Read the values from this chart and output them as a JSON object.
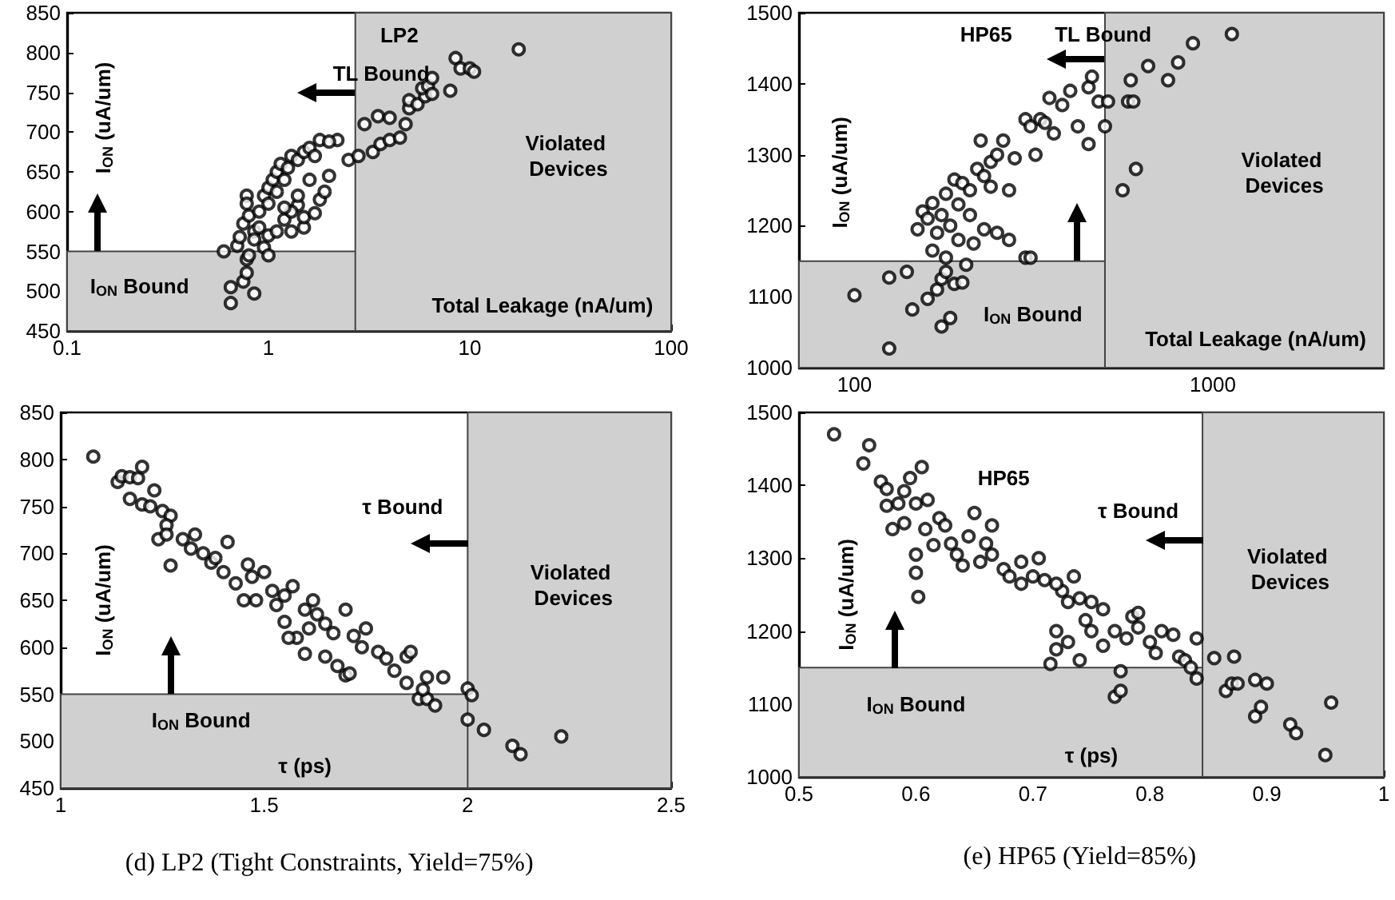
{
  "chart_data": [
    {
      "type": "scatter",
      "title": "LP2",
      "xlabel": "Total Leakage (nA/um)",
      "ylabel": "I$_{ON}$ (uA/um)",
      "log": "x",
      "xlim": [
        0.1,
        100
      ],
      "xticks": [
        0.1,
        1,
        10,
        100
      ],
      "ylim": [
        450,
        850
      ],
      "yticks": [
        450,
        500,
        550,
        600,
        650,
        700,
        750,
        800,
        850
      ],
      "grid": false,
      "marker": "circle",
      "bands": [
        {
          "axis": "y",
          "from": 450,
          "to": 550,
          "color": "#d0d0d0"
        },
        {
          "axis": "x",
          "from": 2.7,
          "to": 100,
          "color": "#d0d0d0"
        }
      ],
      "annotations": [
        "TL Bound",
        "Violated Devices",
        "I$_{ON}$ Bound"
      ],
      "series": [
        {
          "color": "#000000",
          "x": [
            0.6,
            0.65,
            0.65,
            0.75,
            0.78,
            0.78,
            0.8,
            0.85,
            0.7,
            0.72,
            0.75,
            0.78,
            0.78,
            0.8,
            0.85,
            0.85,
            0.9,
            0.9,
            0.95,
            1.0,
            0.95,
            1.0,
            1.0,
            1.05,
            1.1,
            1.1,
            1.15,
            1.2,
            1.25,
            1.3,
            1.4,
            1.5,
            1.6,
            1.8,
            1.0,
            1.1,
            1.3,
            1.2,
            1.5,
            1.5,
            1.4,
            1.7,
            1.8,
            1.9,
            2.0,
            1.6,
            1.4,
            1.3,
            2.2,
            2.5,
            2.8,
            3.0,
            3.3,
            3.5,
            3.6,
            4.0,
            4.5,
            4.0,
            4.8,
            5.0,
            5.0,
            5.5,
            6.0,
            5.8,
            6.2,
            6.5,
            6.5,
            8.0,
            8.5,
            9.0,
            10,
            10.5,
            17.5,
            2.0,
            1.7,
            1.2
          ],
          "values": [
            550,
            505,
            485,
            512,
            523,
            540,
            545,
            497,
            557,
            568,
            585,
            620,
            610,
            595,
            575,
            565,
            600,
            580,
            555,
            545,
            620,
            610,
            630,
            640,
            625,
            650,
            660,
            640,
            655,
            670,
            665,
            675,
            680,
            690,
            570,
            575,
            575,
            590,
            580,
            593,
            608,
            598,
            615,
            625,
            645,
            640,
            620,
            600,
            690,
            665,
            670,
            710,
            675,
            720,
            685,
            690,
            693,
            718,
            710,
            730,
            740,
            735,
            745,
            755,
            758,
            768,
            748,
            752,
            793,
            780,
            780,
            776,
            804,
            688,
            670,
            605
          ]
        }
      ]
    },
    {
      "type": "scatter",
      "title": "HP65",
      "xlabel": "Total Leakage (nA/um)",
      "ylabel": "I$_{ON}$ (uA/um)",
      "log": "x",
      "xlim": [
        70,
        3000
      ],
      "xticks": [
        100,
        1000
      ],
      "ylim": [
        1000,
        1500
      ],
      "yticks": [
        1000,
        1100,
        1200,
        1300,
        1400,
        1500
      ],
      "grid": false,
      "marker": "circle",
      "bands": [
        {
          "axis": "y",
          "from": 1000,
          "to": 1150,
          "color": "#d0d0d0"
        },
        {
          "axis": "x",
          "from": 500,
          "to": 3000,
          "color": "#d0d0d0"
        }
      ],
      "annotations": [
        "TL Bound",
        "Violated Devices",
        "I$_{ON}$ Bound"
      ],
      "series": [
        {
          "color": "#000000",
          "x": [
            100,
            125,
            125,
            140,
            145,
            160,
            170,
            175,
            175,
            180,
            185,
            190,
            200,
            205,
            180,
            165,
            150,
            155,
            160,
            165,
            170,
            175,
            180,
            185,
            190,
            195,
            200,
            210,
            220,
            230,
            240,
            225,
            250,
            260,
            270,
            280,
            300,
            310,
            330,
            350,
            340,
            380,
            400,
            420,
            450,
            460,
            480,
            450,
            500,
            510,
            300,
            310,
            250,
            230,
            215,
            560,
            580,
            600,
            590,
            610,
            660,
            750,
            800,
            880,
            1130,
            270,
            240,
            210,
            195,
            320,
            360
          ],
          "values": [
            1102,
            1027,
            1127,
            1135,
            1082,
            1097,
            1110,
            1125,
            1058,
            1135,
            1070,
            1118,
            1120,
            1145,
            1155,
            1165,
            1195,
            1220,
            1210,
            1232,
            1190,
            1215,
            1245,
            1200,
            1265,
            1230,
            1260,
            1250,
            1280,
            1270,
            1290,
            1320,
            1300,
            1320,
            1250,
            1295,
            1350,
            1340,
            1350,
            1380,
            1345,
            1370,
            1390,
            1340,
            1395,
            1410,
            1375,
            1315,
            1340,
            1375,
            1155,
            1155,
            1190,
            1195,
            1175,
            1250,
            1375,
            1375,
            1405,
            1280,
            1425,
            1405,
            1430,
            1457,
            1470,
            1180,
            1255,
            1215,
            1180,
            1300,
            1330
          ]
        }
      ]
    },
    {
      "type": "scatter",
      "xlabel": "τ (ps)",
      "ylabel": "I$_{ON}$ (uA/um)",
      "xlim": [
        1,
        2.5
      ],
      "xticks": [
        1,
        1.5,
        2,
        2.5
      ],
      "ylim": [
        450,
        850
      ],
      "yticks": [
        450,
        500,
        550,
        600,
        650,
        700,
        750,
        800,
        850
      ],
      "grid": false,
      "marker": "circle",
      "bands": [
        {
          "axis": "y",
          "from": 450,
          "to": 550,
          "color": "#d0d0d0"
        },
        {
          "axis": "x",
          "from": 2,
          "to": 2.5,
          "color": "#d0d0d0"
        }
      ],
      "annotations": [
        "τ Bound",
        "Violated Devices",
        "I$_{ON}$ Bound",
        "(d) LP2 (Tight Constraints, Yield=75%)"
      ],
      "series": [
        {
          "color": "#000000",
          "x": [
            1.08,
            1.14,
            1.15,
            1.17,
            1.19,
            1.2,
            1.17,
            1.2,
            1.22,
            1.23,
            1.25,
            1.27,
            1.26,
            1.24,
            1.26,
            1.27,
            1.3,
            1.32,
            1.33,
            1.35,
            1.37,
            1.38,
            1.4,
            1.41,
            1.43,
            1.46,
            1.47,
            1.5,
            1.48,
            1.52,
            1.53,
            1.55,
            1.57,
            1.55,
            1.58,
            1.6,
            1.61,
            1.62,
            1.63,
            1.6,
            1.65,
            1.67,
            1.68,
            1.7,
            1.71,
            1.72,
            1.74,
            1.75,
            1.78,
            1.8,
            1.82,
            1.85,
            1.86,
            1.85,
            1.88,
            1.9,
            1.9,
            1.92,
            1.89,
            1.94,
            2.0,
            2.01,
            2.0,
            2.04,
            2.11,
            2.13,
            2.23,
            1.56,
            1.65,
            1.45,
            1.7
          ],
          "values": [
            803,
            776,
            782,
            781,
            780,
            792,
            758,
            752,
            750,
            767,
            745,
            740,
            730,
            715,
            720,
            687,
            715,
            705,
            720,
            700,
            690,
            695,
            680,
            712,
            668,
            688,
            675,
            680,
            650,
            660,
            645,
            655,
            665,
            627,
            610,
            640,
            620,
            650,
            635,
            593,
            625,
            615,
            580,
            570,
            572,
            612,
            600,
            620,
            595,
            588,
            575,
            590,
            595,
            562,
            545,
            568,
            545,
            538,
            555,
            568,
            556,
            549,
            523,
            512,
            495,
            486,
            505,
            610,
            590,
            650,
            640
          ]
        }
      ]
    },
    {
      "type": "scatter",
      "title": "HP65",
      "xlabel": "τ (ps)",
      "ylabel": "I$_{ON}$ (uA/um)",
      "xlim": [
        0.5,
        1
      ],
      "xticks": [
        0.5,
        0.6,
        0.7,
        0.8,
        0.9,
        1
      ],
      "ylim": [
        1000,
        1500
      ],
      "yticks": [
        1000,
        1100,
        1200,
        1300,
        1400,
        1500
      ],
      "grid": false,
      "marker": "circle",
      "bands": [
        {
          "axis": "y",
          "from": 1000,
          "to": 1150,
          "color": "#d0d0d0"
        },
        {
          "axis": "x",
          "from": 0.845,
          "to": 1,
          "color": "#d0d0d0"
        }
      ],
      "annotations": [
        "τ Bound",
        "Violated Devices",
        "I$_{ON}$ Bound",
        "(e) HP65 (Yield=85%)"
      ],
      "series": [
        {
          "color": "#000000",
          "x": [
            0.53,
            0.555,
            0.56,
            0.57,
            0.575,
            0.575,
            0.58,
            0.585,
            0.59,
            0.59,
            0.595,
            0.6,
            0.6,
            0.6,
            0.602,
            0.605,
            0.608,
            0.61,
            0.615,
            0.62,
            0.625,
            0.63,
            0.635,
            0.64,
            0.645,
            0.65,
            0.655,
            0.66,
            0.665,
            0.665,
            0.675,
            0.68,
            0.69,
            0.69,
            0.7,
            0.705,
            0.71,
            0.715,
            0.72,
            0.72,
            0.725,
            0.73,
            0.73,
            0.735,
            0.74,
            0.74,
            0.745,
            0.75,
            0.75,
            0.76,
            0.77,
            0.77,
            0.775,
            0.775,
            0.78,
            0.785,
            0.79,
            0.8,
            0.805,
            0.81,
            0.82,
            0.825,
            0.83,
            0.835,
            0.84,
            0.84,
            0.855,
            0.865,
            0.87,
            0.872,
            0.875,
            0.89,
            0.89,
            0.895,
            0.9,
            0.92,
            0.925,
            0.95,
            0.955,
            0.72,
            0.76,
            0.79
          ],
          "values": [
            1470,
            1430,
            1455,
            1405,
            1395,
            1372,
            1340,
            1375,
            1348,
            1392,
            1410,
            1375,
            1305,
            1280,
            1247,
            1425,
            1340,
            1380,
            1318,
            1355,
            1345,
            1320,
            1305,
            1290,
            1330,
            1362,
            1295,
            1320,
            1345,
            1305,
            1285,
            1275,
            1265,
            1295,
            1275,
            1300,
            1270,
            1155,
            1200,
            1175,
            1255,
            1240,
            1185,
            1275,
            1245,
            1160,
            1215,
            1240,
            1200,
            1230,
            1200,
            1110,
            1145,
            1118,
            1190,
            1220,
            1205,
            1185,
            1170,
            1200,
            1195,
            1165,
            1160,
            1150,
            1190,
            1135,
            1163,
            1118,
            1128,
            1165,
            1128,
            1133,
            1083,
            1096,
            1128,
            1072,
            1060,
            1030,
            1102,
            1265,
            1180,
            1225
          ]
        }
      ]
    }
  ]
}
